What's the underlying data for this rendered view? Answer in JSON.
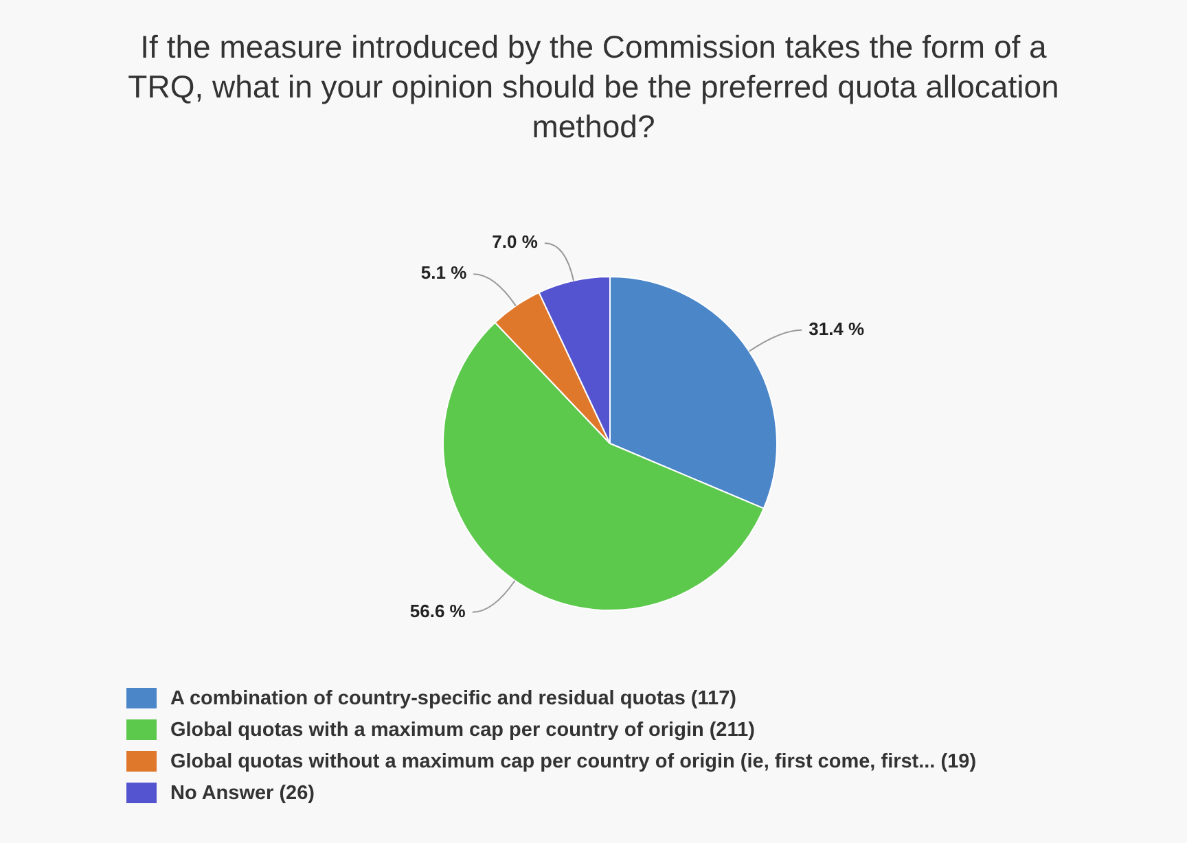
{
  "chart_data": {
    "type": "pie",
    "title": "If the measure introduced by the Commission takes the form of a TRQ, what in your opinion should be the preferred quota allocation method?",
    "categories": [
      "A combination of country-specific and residual quotas (117)",
      "Global quotas with a maximum cap per country of origin (211)",
      "Global quotas without a maximum cap per country of origin (ie, first come, first... (19)",
      "No Answer (26)"
    ],
    "values": [
      31.4,
      56.6,
      5.1,
      7.0
    ],
    "value_labels": [
      "31.4 %",
      "56.6 %",
      "5.1 %",
      "7.0 %"
    ],
    "colors": [
      "#4a86c8",
      "#5cc84c",
      "#e0782c",
      "#5454d0"
    ],
    "legend": "bottom"
  }
}
